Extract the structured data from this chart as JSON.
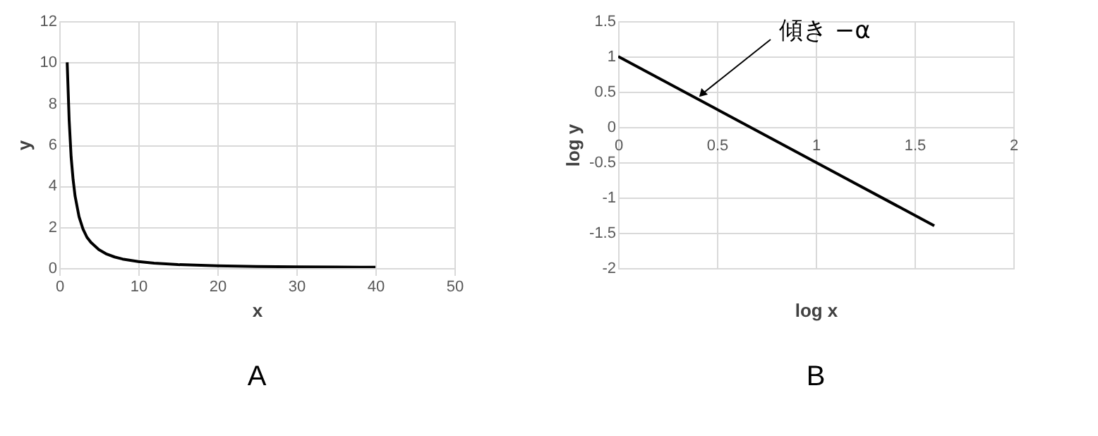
{
  "chart_data": [
    {
      "type": "line",
      "title": "A",
      "xlabel": "x",
      "ylabel": "y",
      "xlim": [
        0,
        50
      ],
      "ylim": [
        0,
        12
      ],
      "xticks": [
        0,
        10,
        20,
        30,
        40,
        50
      ],
      "yticks": [
        0,
        2,
        4,
        6,
        8,
        10,
        12
      ],
      "grid": true,
      "series": [
        {
          "color": "#000000",
          "x": [
            1,
            1.25,
            1.5,
            1.75,
            2,
            2.5,
            3,
            3.5,
            4,
            5,
            6,
            7,
            8,
            10,
            12,
            15,
            20,
            25,
            30,
            35,
            40
          ],
          "values": [
            10,
            7.2,
            5.4,
            4.3,
            3.5,
            2.5,
            1.9,
            1.5,
            1.25,
            0.9,
            0.68,
            0.54,
            0.44,
            0.32,
            0.24,
            0.17,
            0.11,
            0.08,
            0.06,
            0.05,
            0.04
          ]
        }
      ]
    },
    {
      "type": "line",
      "title": "B",
      "xlabel": "log x",
      "ylabel": "log y",
      "xlim": [
        0,
        2
      ],
      "ylim": [
        -2,
        1.5
      ],
      "xticks": [
        0,
        0.5,
        1,
        1.5,
        2
      ],
      "yticks": [
        -2,
        -1.5,
        -1,
        -0.5,
        0,
        0.5,
        1,
        1.5
      ],
      "grid": true,
      "series": [
        {
          "color": "#000000",
          "x": [
            0,
            1.6
          ],
          "values": [
            1,
            -1.4
          ]
        }
      ],
      "annotations": [
        {
          "text": "傾き −α",
          "x": 0.4,
          "y": 0.4
        }
      ]
    }
  ]
}
